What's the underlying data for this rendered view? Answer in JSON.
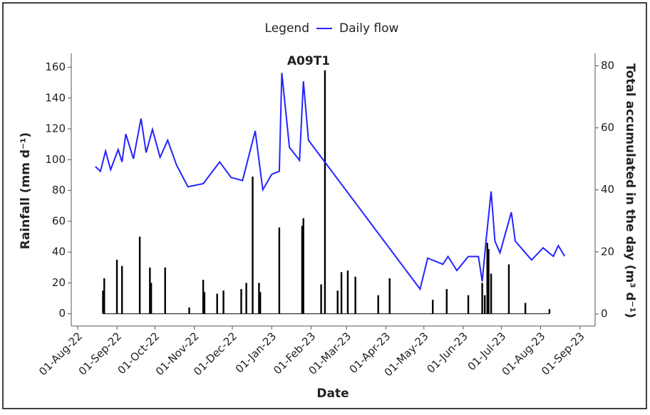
{
  "chart_data": {
    "type": "combo",
    "title": "A09T1",
    "xlabel": "Date",
    "ylabel": "Rainfall (mm d⁻¹)",
    "y2label": "Total accumulated in the day (m³ d⁻¹)",
    "legend_title": "Legend",
    "legend": "top",
    "xlim": [
      "2022-07-27",
      "2023-09-13"
    ],
    "xticks": [
      {
        "value": "2022-08-01",
        "label": "01-Aug-22"
      },
      {
        "value": "2022-09-01",
        "label": "01-Sep-22"
      },
      {
        "value": "2022-10-01",
        "label": "01-Oct-22"
      },
      {
        "value": "2022-11-01",
        "label": "01-Nov-22"
      },
      {
        "value": "2022-12-01",
        "label": "01-Dec-22"
      },
      {
        "value": "2023-01-01",
        "label": "01-Jan-23"
      },
      {
        "value": "2023-02-01",
        "label": "01-Feb-23"
      },
      {
        "value": "2023-03-01",
        "label": "01-Mar-23"
      },
      {
        "value": "2023-04-01",
        "label": "01-Apr-23"
      },
      {
        "value": "2023-05-01",
        "label": "01-May-23"
      },
      {
        "value": "2023-06-01",
        "label": "01-Jun-23"
      },
      {
        "value": "2023-07-01",
        "label": "01-Jul-23"
      },
      {
        "value": "2023-08-01",
        "label": "01-Aug-23"
      },
      {
        "value": "2023-09-01",
        "label": "01-Sep-23"
      }
    ],
    "ylim": [
      -8,
      169
    ],
    "yticks": [
      0,
      20,
      40,
      60,
      80,
      100,
      120,
      140,
      160
    ],
    "y2lim": [
      -3.9,
      84
    ],
    "y2ticks": [
      0,
      20,
      40,
      60,
      80
    ],
    "series": [
      {
        "type": "bar",
        "axis": "y",
        "color": "#000000",
        "x": [
          "2022-08-21",
          "2022-08-22",
          "2022-09-01",
          "2022-09-05",
          "2022-09-19",
          "2022-09-27",
          "2022-09-28",
          "2022-10-09",
          "2022-10-28",
          "2022-11-08",
          "2022-11-09",
          "2022-11-19",
          "2022-11-24",
          "2022-12-08",
          "2022-12-12",
          "2022-12-17",
          "2022-12-22",
          "2022-12-23",
          "2023-01-07",
          "2023-01-25",
          "2023-01-26",
          "2023-02-09",
          "2023-02-12",
          "2023-02-22",
          "2023-02-25",
          "2023-03-02",
          "2023-03-08",
          "2023-03-26",
          "2023-04-04",
          "2023-05-08",
          "2023-05-19",
          "2023-06-05",
          "2023-06-16",
          "2023-06-18",
          "2023-06-20",
          "2023-06-21",
          "2023-06-23",
          "2023-07-07",
          "2023-07-20",
          "2023-08-08"
        ],
        "values": [
          15,
          23,
          35,
          31,
          50,
          30,
          20,
          30,
          4,
          22,
          14,
          13,
          15,
          16,
          20,
          89,
          20,
          14,
          56,
          57,
          62,
          19,
          158,
          15,
          27,
          28,
          24,
          12,
          23,
          9,
          16,
          12,
          20,
          12,
          46,
          42,
          26,
          32,
          7,
          3
        ]
      },
      {
        "type": "line",
        "name": "Daily flow",
        "axis": "y2",
        "color": "#2424ff",
        "x": [
          "2022-08-15",
          "2022-08-19",
          "2022-08-23",
          "2022-08-27",
          "2022-09-02",
          "2022-09-05",
          "2022-09-08",
          "2022-09-14",
          "2022-09-20",
          "2022-09-24",
          "2022-09-29",
          "2022-10-05",
          "2022-10-11",
          "2022-10-18",
          "2022-10-27",
          "2022-11-08",
          "2022-11-21",
          "2022-11-30",
          "2022-12-09",
          "2022-12-19",
          "2022-12-25",
          "2023-01-01",
          "2023-01-07",
          "2023-01-09",
          "2023-01-15",
          "2023-01-23",
          "2023-01-26",
          "2023-01-30",
          "2023-04-28",
          "2023-05-04",
          "2023-05-16",
          "2023-05-20",
          "2023-05-27",
          "2023-06-05",
          "2023-06-13",
          "2023-06-16",
          "2023-06-19",
          "2023-06-23",
          "2023-06-26",
          "2023-06-30",
          "2023-07-09",
          "2023-07-12",
          "2023-07-20",
          "2023-07-25",
          "2023-08-03",
          "2023-08-11",
          "2023-08-15",
          "2023-08-20"
        ],
        "values": [
          47.5,
          46,
          52.5,
          46.5,
          53,
          49,
          58,
          50,
          63,
          52,
          59.5,
          50.5,
          56,
          48,
          41,
          42,
          49,
          44,
          43,
          59,
          40,
          45,
          46,
          77.7,
          53.7,
          49.5,
          75,
          56,
          8,
          18,
          16,
          18.5,
          14,
          18.5,
          18.5,
          10.5,
          23.5,
          39.5,
          23.5,
          19.7,
          32.8,
          23.5,
          19.7,
          17.4,
          21.3,
          18.6,
          22,
          18.6
        ]
      }
    ]
  }
}
